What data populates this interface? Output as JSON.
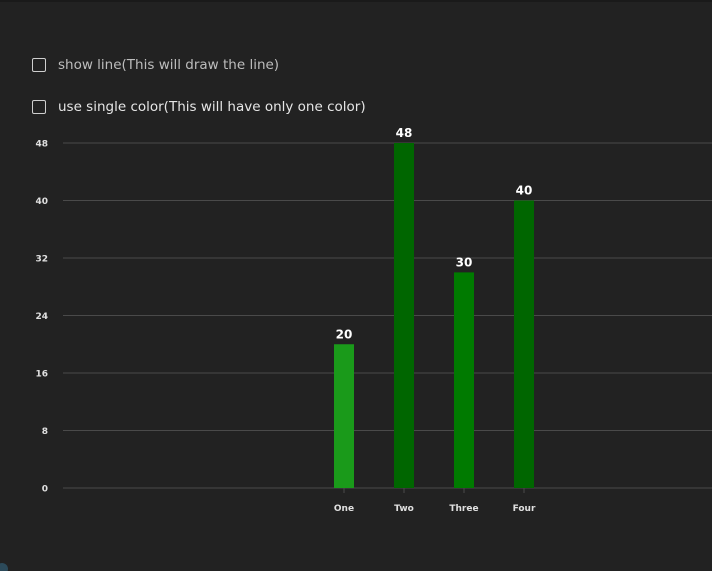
{
  "options": [
    {
      "label": "show line(This will draw the line)",
      "checked": false,
      "label_color": "#bdbdbd"
    },
    {
      "label": "use single color(This will have only one color)",
      "checked": false,
      "label_color": "#e6e6e6"
    }
  ],
  "chart_data": {
    "type": "bar",
    "title": "",
    "xlabel": "",
    "ylabel": "",
    "categories": [
      "One",
      "Two",
      "Three",
      "Four"
    ],
    "values": [
      20,
      48,
      30,
      40
    ],
    "bar_colors": [
      "#1a9a1a",
      "#006600",
      "#007a00",
      "#006600"
    ],
    "ylim": [
      0,
      48
    ],
    "yticks": [
      0,
      8,
      16,
      24,
      32,
      40,
      48
    ],
    "grid": true,
    "data_labels": true,
    "legend": "none"
  },
  "colors": {
    "background": "#222222",
    "gridline": "#4a4a4a",
    "tick_text": "#e0e0e0",
    "data_label": "#ffffff"
  }
}
